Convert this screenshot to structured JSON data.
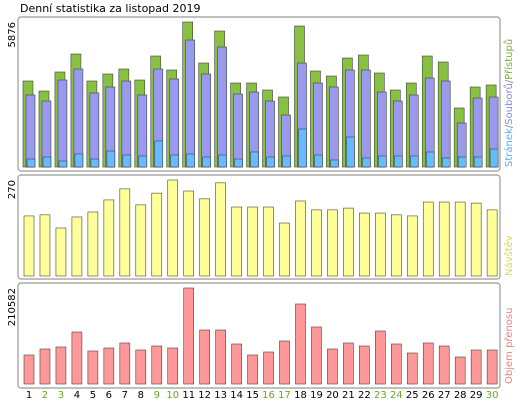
{
  "title": "Denní statistika za listopad 2019",
  "chart_data": [
    {
      "type": "bar",
      "ylim": [
        0,
        5876
      ],
      "yticks": [
        5876
      ],
      "legend_separator": "/",
      "series": [
        {
          "name": "Stránek",
          "color": "#66bbff",
          "text_color": "#5aaee8",
          "values": [
            324,
            405,
            243,
            527,
            324,
            648,
            486,
            446,
            1054,
            486,
            527,
            405,
            486,
            324,
            608,
            405,
            446,
            1540,
            486,
            284,
            1216,
            365,
            446,
            446,
            446,
            608,
            365,
            405,
            405,
            729
          ]
        },
        {
          "name": "Souborů",
          "color": "#9999ee",
          "text_color": "#8a8ae0",
          "values": [
            2918,
            2674,
            3525,
            3971,
            2999,
            3242,
            3485,
            2918,
            3971,
            3566,
            5146,
            3769,
            4862,
            2958,
            3039,
            2674,
            2107,
            4214,
            3404,
            3242,
            3931,
            3931,
            3039,
            2674,
            2918,
            3606,
            3485,
            1783,
            2796,
            2836
          ]
        },
        {
          "name": "Přístupů",
          "color": "#88c040",
          "text_color": "#77b030",
          "values": [
            3485,
            3080,
            3850,
            4579,
            3485,
            3769,
            3971,
            3525,
            4498,
            3931,
            5876,
            4214,
            5511,
            3404,
            3404,
            3120,
            2837,
            5714,
            3890,
            3687,
            4417,
            4538,
            3809,
            3120,
            3404,
            4498,
            4255,
            2391,
            3242,
            3323
          ]
        }
      ]
    },
    {
      "type": "bar",
      "ylim": [
        0,
        270
      ],
      "yticks": [
        270
      ],
      "series": [
        {
          "name": "Návštěv",
          "color": "#ffff99",
          "text_color": "#d8d860",
          "values": [
            169,
            172,
            135,
            166,
            180,
            214,
            245,
            200,
            233,
            270,
            239,
            217,
            262,
            194,
            194,
            194,
            149,
            211,
            186,
            186,
            191,
            177,
            177,
            172,
            169,
            208,
            208,
            208,
            205,
            186
          ]
        }
      ]
    },
    {
      "type": "bar",
      "ylim": [
        0,
        210582
      ],
      "yticks": [
        210582
      ],
      "categories": [
        "1",
        "2",
        "3",
        "4",
        "5",
        "6",
        "7",
        "8",
        "9",
        "10",
        "11",
        "12",
        "13",
        "14",
        "15",
        "16",
        "17",
        "18",
        "19",
        "20",
        "21",
        "22",
        "23",
        "24",
        "25",
        "26",
        "27",
        "28",
        "29",
        "30"
      ],
      "label_colors": [
        "#000",
        "#66aa22",
        "#66aa22",
        "#000",
        "#000",
        "#000",
        "#000",
        "#000",
        "#66aa22",
        "#66aa22",
        "#000",
        "#000",
        "#000",
        "#000",
        "#000",
        "#66aa22",
        "#66aa22",
        "#000",
        "#000",
        "#000",
        "#000",
        "#000",
        "#66aa22",
        "#66aa22",
        "#000",
        "#000",
        "#000",
        "#000",
        "#000",
        "#66aa22"
      ],
      "series": [
        {
          "name": "Objem přenosu",
          "color": "#ff9999",
          "text_color": "#ee8080",
          "values": [
            63614,
            76776,
            81163,
            114067,
            72389,
            78970,
            89938,
            74582,
            83357,
            78970,
            210582,
            118454,
            118454,
            87744,
            63614,
            70195,
            94325,
            175485,
            125035,
            76776,
            89938,
            83357,
            116261,
            87744,
            68002,
            89938,
            83357,
            59227,
            74582,
            74582
          ]
        }
      ]
    }
  ]
}
